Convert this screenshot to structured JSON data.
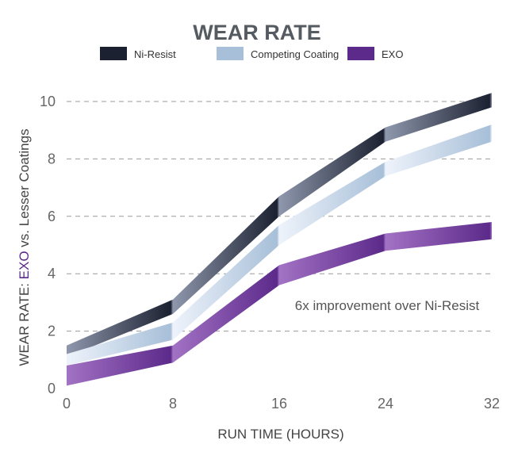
{
  "chart_data": {
    "type": "area",
    "title": "WEAR RATE",
    "xlabel": "RUN TIME (HOURS)",
    "ylabel_parts": [
      "WEAR RATE: ",
      "EXO",
      " vs. Lesser Coatings"
    ],
    "x": [
      0,
      8,
      16,
      24,
      32
    ],
    "xlim": [
      0,
      32
    ],
    "ylim": [
      0,
      10
    ],
    "yticks": [
      0,
      2,
      4,
      6,
      8,
      10
    ],
    "grid": true,
    "legend_position": "top",
    "series": [
      {
        "name": "Ni-Resist",
        "lower": [
          1.1,
          2.6,
          6.0,
          8.6,
          9.8
        ],
        "upper": [
          1.5,
          3.1,
          6.7,
          9.1,
          10.3
        ],
        "color": "#1b2130",
        "light": "#8f97ad"
      },
      {
        "name": "Competing Coating",
        "lower": [
          0.8,
          1.7,
          5.0,
          7.4,
          8.6
        ],
        "upper": [
          1.2,
          2.3,
          5.7,
          7.9,
          9.2
        ],
        "color": "#a7bfd8",
        "light": "#eef3fb"
      },
      {
        "name": "EXO",
        "lower": [
          0.1,
          0.9,
          3.6,
          4.8,
          5.2
        ],
        "upper": [
          0.8,
          1.5,
          4.3,
          5.4,
          5.8
        ],
        "color": "#5c2a8a",
        "light": "#a272c4"
      }
    ],
    "annotations": [
      {
        "text": "6x improvement over Ni-Resist",
        "x": 21,
        "y": 2.9
      }
    ]
  },
  "colors": {
    "exo_accent": "#5c2a8a"
  }
}
